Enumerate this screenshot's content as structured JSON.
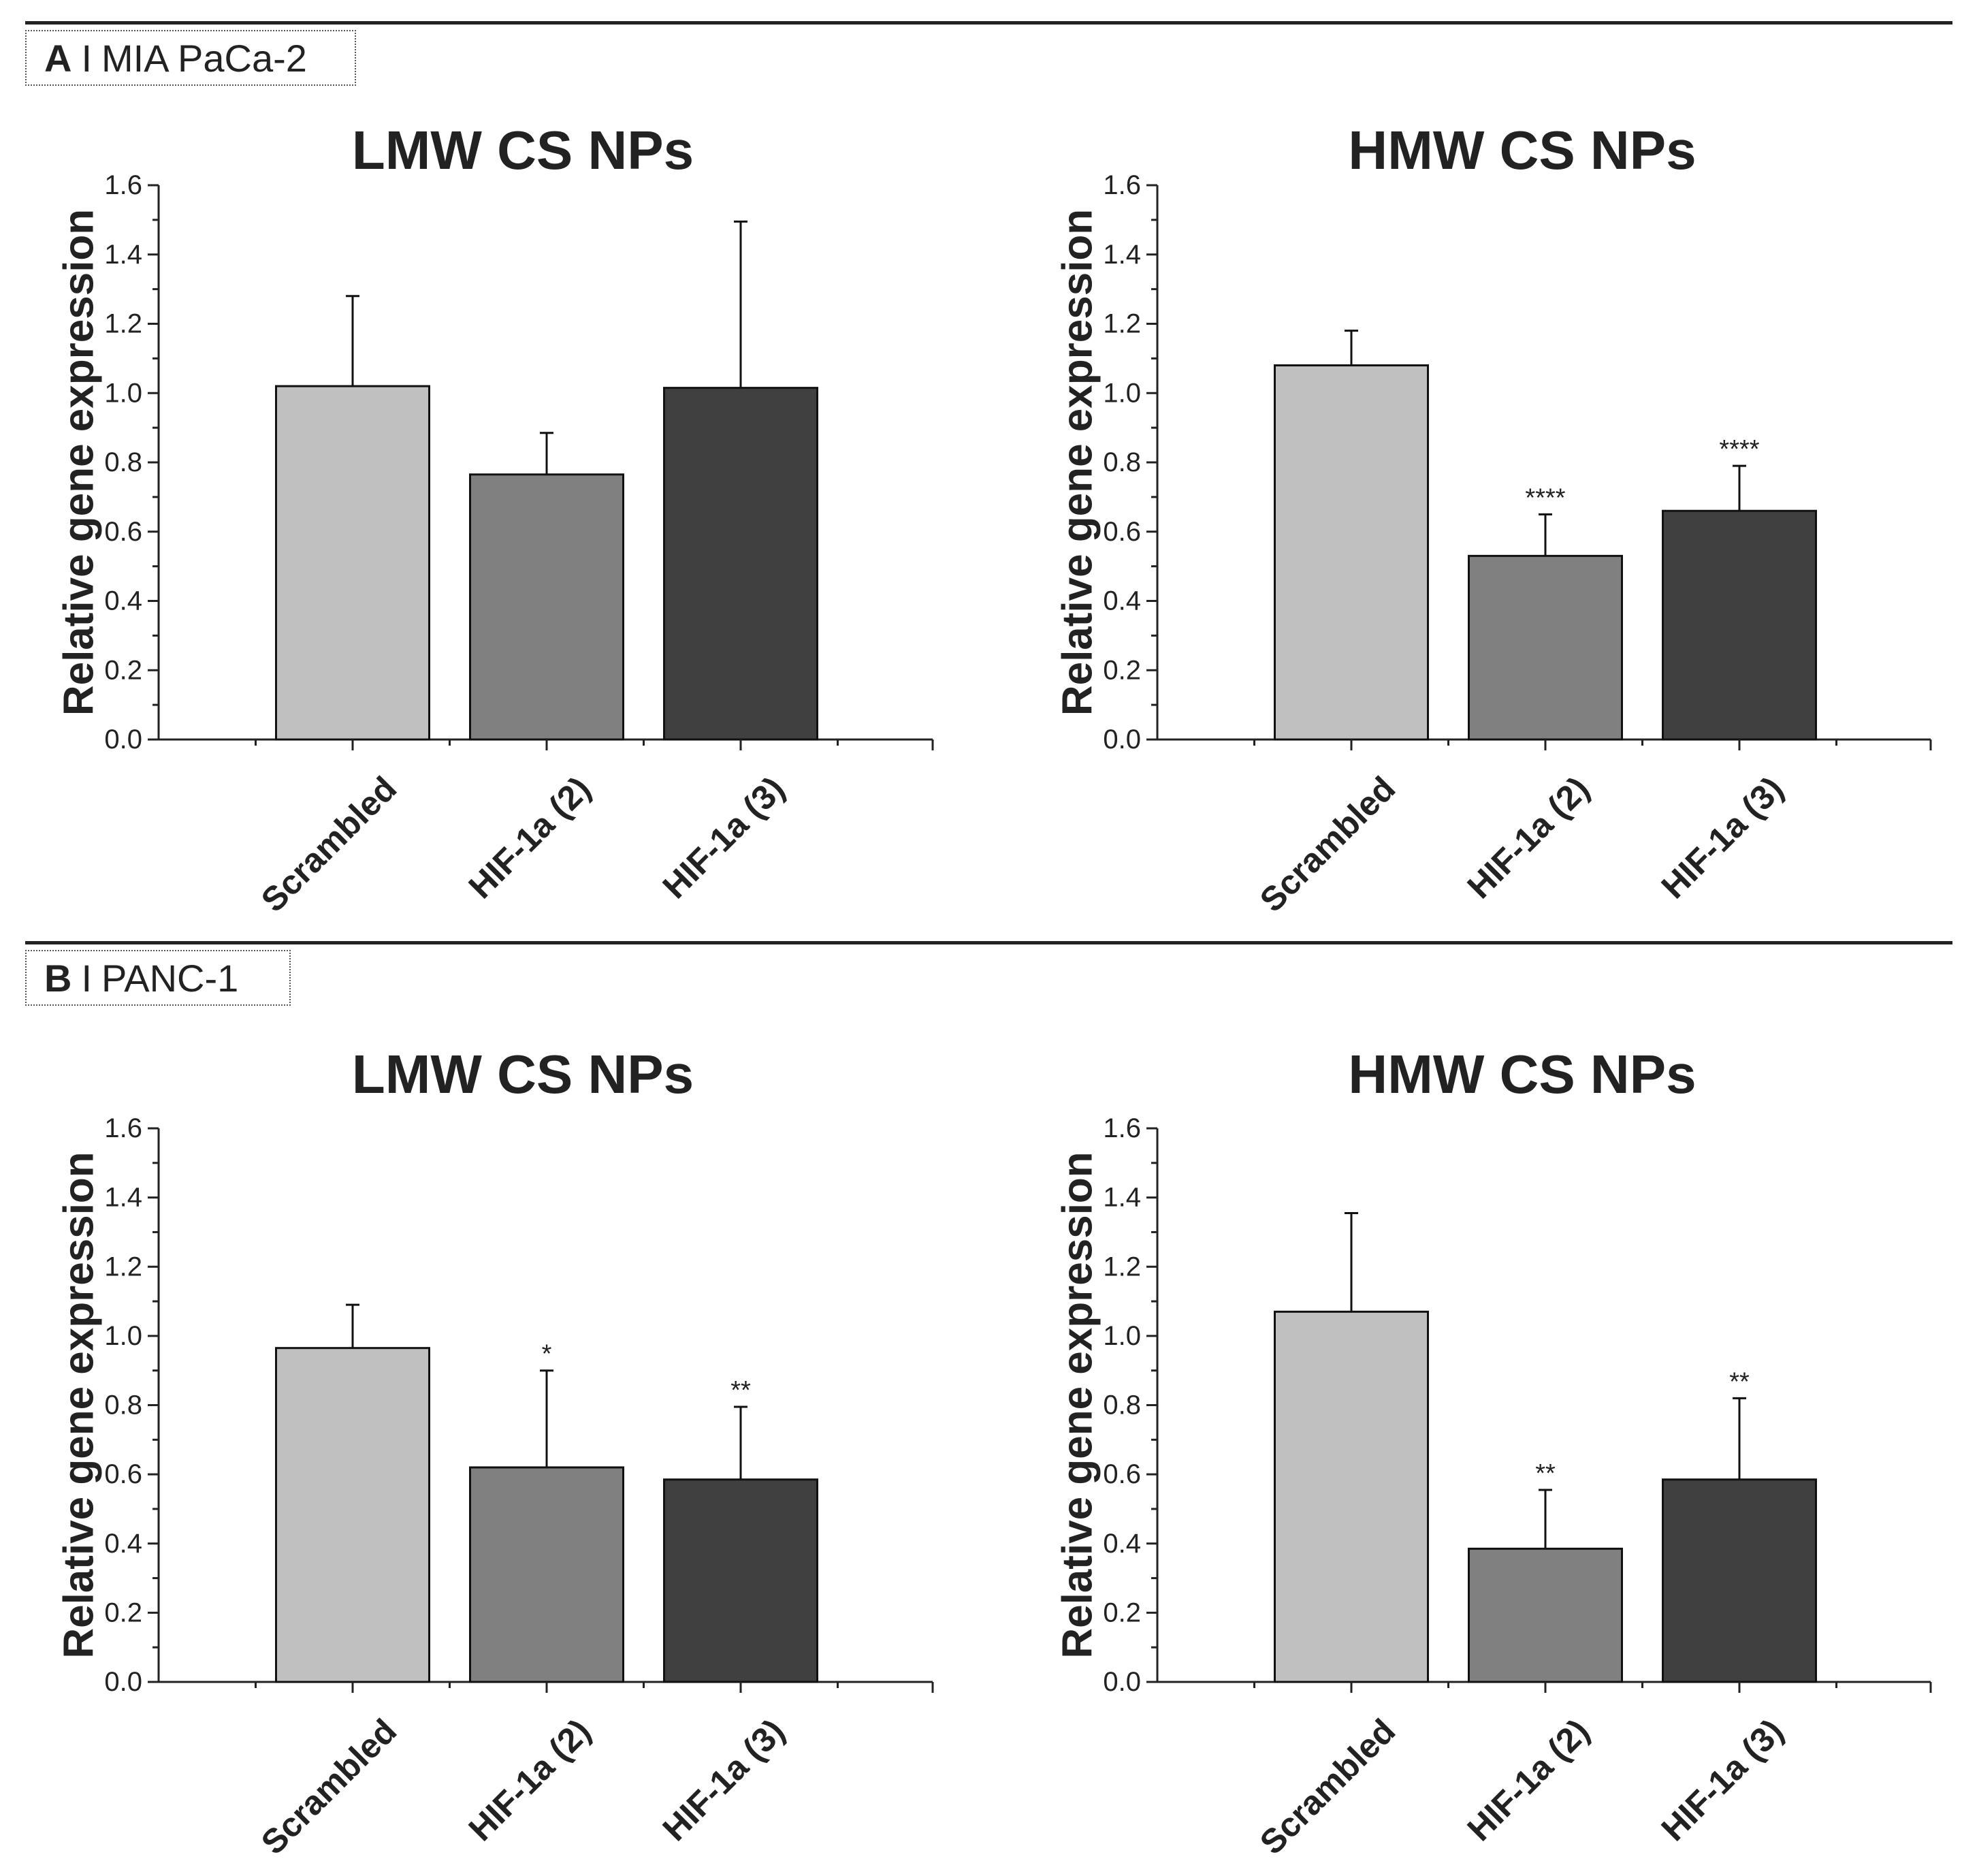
{
  "panels": [
    {
      "letter": "A",
      "separator": "I",
      "cell_line": "MIA PaCa-2"
    },
    {
      "letter": "B",
      "separator": "I",
      "cell_line": "PANC-1"
    }
  ],
  "colors": {
    "scrambled": "#c0c0c0",
    "hif2": "#808080",
    "hif3": "#404040",
    "axis": "#222222"
  },
  "chart_data": [
    {
      "panel": "A",
      "type": "bar",
      "title": "LMW CS NPs",
      "xlabel": "",
      "ylabel": "Relative gene expression",
      "ylim": [
        0,
        1.6
      ],
      "yticks": [
        "0.0",
        "0.2",
        "0.4",
        "0.6",
        "0.8",
        "1.0",
        "1.2",
        "1.4",
        "1.6"
      ],
      "categories": [
        "Scrambled",
        "HIF-1a (2)",
        "HIF-1a (3)"
      ],
      "values": [
        1.02,
        0.765,
        1.015
      ],
      "errors": [
        0.26,
        0.12,
        0.48
      ],
      "annotations": [
        "",
        "",
        ""
      ]
    },
    {
      "panel": "A",
      "type": "bar",
      "title": "HMW CS NPs",
      "xlabel": "",
      "ylabel": "Relative gene expression",
      "ylim": [
        0,
        1.6
      ],
      "yticks": [
        "0.0",
        "0.2",
        "0.4",
        "0.6",
        "0.8",
        "1.0",
        "1.2",
        "1.4",
        "1.6"
      ],
      "categories": [
        "Scrambled",
        "HIF-1a (2)",
        "HIF-1a (3)"
      ],
      "values": [
        1.08,
        0.53,
        0.66
      ],
      "errors": [
        0.1,
        0.12,
        0.13
      ],
      "annotations": [
        "",
        "****",
        "****"
      ]
    },
    {
      "panel": "B",
      "type": "bar",
      "title": "LMW CS NPs",
      "xlabel": "",
      "ylabel": "Relative gene expression",
      "ylim": [
        0,
        1.6
      ],
      "yticks": [
        "0.0",
        "0.2",
        "0.4",
        "0.6",
        "0.8",
        "1.0",
        "1.2",
        "1.4",
        "1.6"
      ],
      "categories": [
        "Scrambled",
        "HIF-1a (2)",
        "HIF-1a (3)"
      ],
      "values": [
        0.965,
        0.62,
        0.585
      ],
      "errors": [
        0.125,
        0.28,
        0.21
      ],
      "annotations": [
        "",
        "*",
        "**"
      ]
    },
    {
      "panel": "B",
      "type": "bar",
      "title": "HMW CS NPs",
      "xlabel": "",
      "ylabel": "Relative gene expression",
      "ylim": [
        0,
        1.6
      ],
      "yticks": [
        "0.0",
        "0.2",
        "0.4",
        "0.6",
        "0.8",
        "1.0",
        "1.2",
        "1.4",
        "1.6"
      ],
      "categories": [
        "Scrambled",
        "HIF-1a (2)",
        "HIF-1a (3)"
      ],
      "values": [
        1.07,
        0.385,
        0.585
      ],
      "errors": [
        0.285,
        0.17,
        0.235
      ],
      "annotations": [
        "",
        "**",
        "**"
      ]
    }
  ]
}
